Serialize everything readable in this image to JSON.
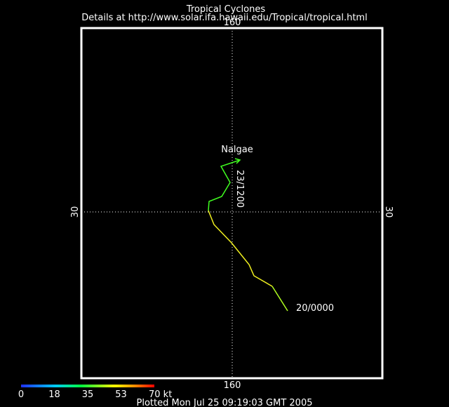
{
  "header": {
    "title": "Tropical Cyclones",
    "subtitle": "Details at http://www.solar.ifa.hawaii.edu/Tropical/tropical.html"
  },
  "map": {
    "lon_label_top": "160",
    "lon_label_bottom": "160",
    "lat_label_left": "30",
    "lat_label_right": "30"
  },
  "storm": {
    "name": "Nalgae",
    "time_label_mid": "23/1200",
    "time_label_start": "20/0000"
  },
  "colorbar": {
    "ticks": [
      "0",
      "18",
      "35",
      "53",
      "70 kt"
    ]
  },
  "footer": {
    "text": "Plotted Mon Jul 25 09:19:03 GMT 2005"
  }
}
